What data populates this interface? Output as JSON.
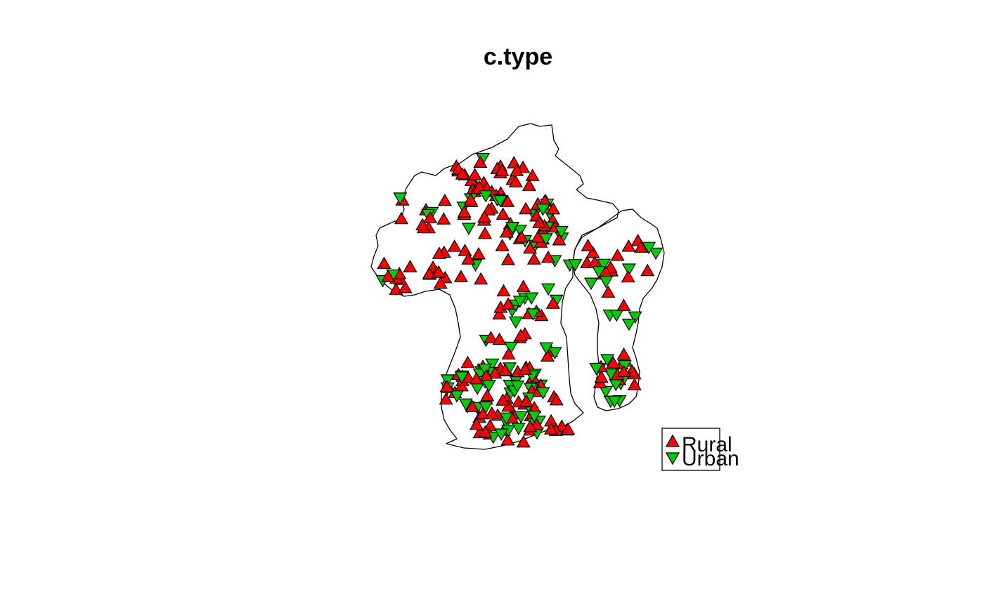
{
  "title": "c.type",
  "legend": {
    "placement": "bottom-right",
    "entries": [
      {
        "label": "Rural",
        "symbol": "triangle-up",
        "color": "#ff0000"
      },
      {
        "label": "Urban",
        "symbol": "triangle-down",
        "color": "#00cc00"
      }
    ]
  },
  "colors": {
    "rural": "#ff0000",
    "urban": "#00cc00",
    "outline": "#000000",
    "background": "#ffffff"
  }
}
